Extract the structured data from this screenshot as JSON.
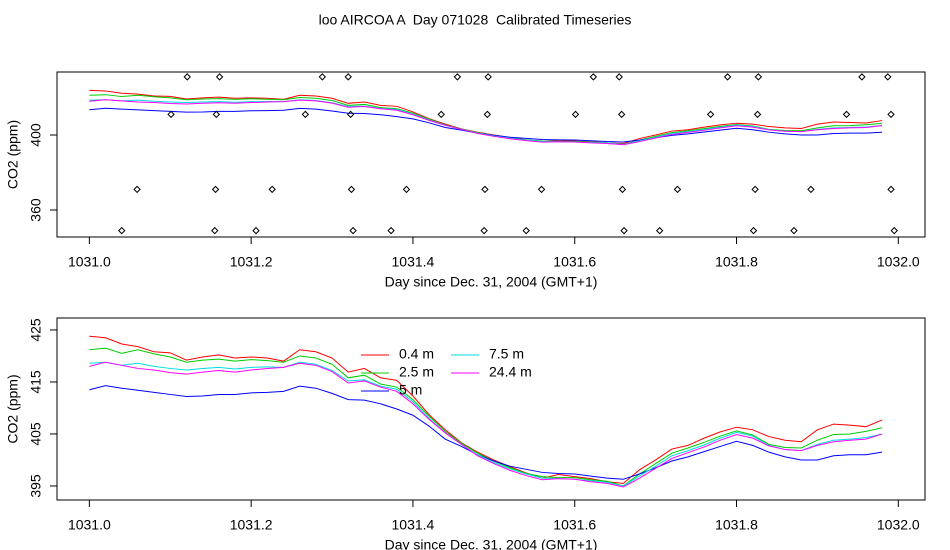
{
  "chart_data": [
    {
      "type": "scatter",
      "title": "loo AIRCOA A  Day 071028  Calibrated Timeseries",
      "xlabel": "Day since Dec. 31, 2004 (GMT+1)",
      "ylabel": "CO2 (ppm)",
      "xlim": [
        1030.96,
        1032.033
      ],
      "ylim": [
        345.6,
        433.6
      ],
      "xticks": [
        {
          "value": 1031,
          "label": "1031.0"
        },
        {
          "value": 1031.2,
          "label": "1031.2"
        },
        {
          "value": 1031.4,
          "label": "1031.4"
        },
        {
          "value": 1031.6,
          "label": "1031.6"
        },
        {
          "value": 1031.8,
          "label": "1031.8"
        },
        {
          "value": 1032,
          "label": "1032.0"
        }
      ],
      "yticks": [
        360,
        400
      ],
      "marker_color": "#000000",
      "x": [
        1031.121,
        1031.161,
        1031.288,
        1031.32,
        1031.455,
        1031.493,
        1031.623,
        1031.655,
        1031.789,
        1031.827,
        1031.955,
        1031.987,
        1031.101,
        1031.157,
        1031.267,
        1031.323,
        1031.435,
        1031.492,
        1031.601,
        1031.658,
        1031.768,
        1031.826,
        1031.936,
        1031.991,
        1031.059,
        1031.156,
        1031.226,
        1031.324,
        1031.392,
        1031.489,
        1031.559,
        1031.659,
        1031.727,
        1031.823,
        1031.892,
        1031.991,
        1031.04,
        1031.155,
        1031.206,
        1031.326,
        1031.373,
        1031.488,
        1031.54,
        1031.661,
        1031.705,
        1031.821,
        1031.871,
        1031.995
      ],
      "values": [
        431,
        431,
        431,
        431,
        431,
        431,
        431,
        431,
        431,
        431,
        431,
        431,
        411,
        411,
        411,
        411,
        411,
        411,
        411,
        411,
        411,
        411,
        411,
        411,
        371,
        371,
        371,
        371,
        371,
        371,
        371,
        371,
        371,
        371,
        371,
        371,
        349,
        349,
        349,
        349,
        349,
        349,
        349,
        349,
        349,
        349,
        349,
        349
      ]
    },
    {
      "type": "line",
      "xlabel": "Day since Dec. 31, 2004 (GMT+1)",
      "ylabel": "CO2 (ppm)",
      "xlim": [
        1030.96,
        1032.033
      ],
      "ylim": [
        392.3,
        427.3
      ],
      "xticks": [
        {
          "value": 1031,
          "label": "1031.0"
        },
        {
          "value": 1031.2,
          "label": "1031.2"
        },
        {
          "value": 1031.4,
          "label": "1031.4"
        },
        {
          "value": 1031.6,
          "label": "1031.6"
        },
        {
          "value": 1031.8,
          "label": "1031.8"
        },
        {
          "value": 1032,
          "label": "1032.0"
        }
      ],
      "yticks": [
        395,
        405,
        415,
        425
      ],
      "legend": "top",
      "legend_columns": 2,
      "x": [
        1031,
        1031.02,
        1031.04,
        1031.06,
        1031.08,
        1031.1,
        1031.12,
        1031.14,
        1031.16,
        1031.18,
        1031.2,
        1031.22,
        1031.24,
        1031.26,
        1031.28,
        1031.3,
        1031.32,
        1031.34,
        1031.36,
        1031.38,
        1031.4,
        1031.42,
        1031.44,
        1031.46,
        1031.48,
        1031.5,
        1031.52,
        1031.54,
        1031.56,
        1031.58,
        1031.6,
        1031.62,
        1031.64,
        1031.66,
        1031.68,
        1031.7,
        1031.72,
        1031.74,
        1031.76,
        1031.78,
        1031.8,
        1031.82,
        1031.84,
        1031.86,
        1031.88,
        1031.9,
        1031.92,
        1031.94,
        1031.96,
        1031.98
      ],
      "series": [
        {
          "name": "0.4 m",
          "color": "#ff0000",
          "values": [
            423.8,
            423.5,
            422.3,
            421.8,
            420.8,
            420.6,
            419.2,
            419.8,
            420.2,
            419.6,
            419.8,
            419.6,
            419.0,
            421.2,
            420.8,
            419.6,
            416.9,
            417.6,
            415.8,
            415.3,
            412.3,
            408.7,
            405.8,
            403.3,
            401.5,
            400.0,
            398.7,
            397.5,
            396.5,
            397.2,
            396.8,
            396.4,
            395.8,
            395.5,
            398.1,
            400.0,
            402.1,
            402.8,
            404.2,
            405.4,
            406.3,
            405.8,
            404.5,
            403.8,
            403.5,
            405.8,
            406.9,
            406.7,
            406.4,
            407.7
          ]
        },
        {
          "name": "2.5 m",
          "color": "#00cd00",
          "values": [
            421.2,
            421.5,
            420.5,
            421.2,
            420.4,
            419.8,
            418.8,
            419.2,
            419.4,
            419.0,
            419.3,
            419.1,
            418.8,
            420.0,
            419.6,
            418.4,
            415.8,
            416.3,
            414.6,
            414.0,
            411.6,
            408.4,
            405.5,
            403.2,
            401.3,
            399.8,
            398.5,
            397.4,
            396.8,
            396.6,
            396.6,
            396.2,
            395.9,
            395.0,
            397.3,
            399.3,
            401.3,
            402.3,
            403.4,
            404.6,
            405.6,
            404.8,
            403.0,
            402.4,
            402.3,
            403.8,
            404.9,
            405.0,
            405.5,
            406.2
          ]
        },
        {
          "name": "5 m",
          "color": "#0000ff",
          "values": [
            413.5,
            414.3,
            413.8,
            413.4,
            413.0,
            412.6,
            412.2,
            412.3,
            412.6,
            412.6,
            412.9,
            413.0,
            413.2,
            414.2,
            413.8,
            412.8,
            411.6,
            411.5,
            410.8,
            409.8,
            408.6,
            406.5,
            404.0,
            402.6,
            401.0,
            399.8,
            398.8,
            398.2,
            397.6,
            397.4,
            397.3,
            396.9,
            396.5,
            396.3,
            397.3,
            398.5,
            399.8,
            400.6,
            401.6,
            402.6,
            403.6,
            402.8,
            401.5,
            400.6,
            400.0,
            400.0,
            400.8,
            401.0,
            401.0,
            401.5
          ]
        },
        {
          "name": "7.5 m",
          "color": "#00dede",
          "values": [
            418.6,
            418.8,
            418.2,
            418.6,
            418.0,
            417.6,
            417.3,
            417.6,
            417.8,
            417.5,
            417.8,
            417.9,
            417.8,
            418.8,
            418.4,
            417.2,
            415.2,
            415.4,
            414.2,
            413.6,
            411.2,
            408.0,
            405.2,
            403.0,
            401.0,
            399.5,
            398.3,
            397.3,
            396.5,
            396.4,
            396.3,
            396.0,
            395.7,
            395.0,
            396.9,
            398.8,
            400.8,
            401.8,
            402.9,
            404.2,
            405.3,
            404.6,
            402.8,
            402.0,
            401.8,
            403.0,
            403.8,
            404.0,
            404.3,
            405.0
          ]
        },
        {
          "name": "24.4 m",
          "color": "#ff00ff",
          "values": [
            418.0,
            418.8,
            418.2,
            417.6,
            417.3,
            416.8,
            416.5,
            416.9,
            417.2,
            416.9,
            417.3,
            417.6,
            417.8,
            418.6,
            418.2,
            417.0,
            414.8,
            415.2,
            414.0,
            413.2,
            410.8,
            407.8,
            405.2,
            403.0,
            400.8,
            399.3,
            398.0,
            397.0,
            396.2,
            396.4,
            396.3,
            395.8,
            395.5,
            394.8,
            396.5,
            398.4,
            400.3,
            401.4,
            402.5,
            403.8,
            404.9,
            404.2,
            402.7,
            402.0,
            401.8,
            402.8,
            403.5,
            403.8,
            404.0,
            405.0
          ]
        }
      ]
    }
  ]
}
